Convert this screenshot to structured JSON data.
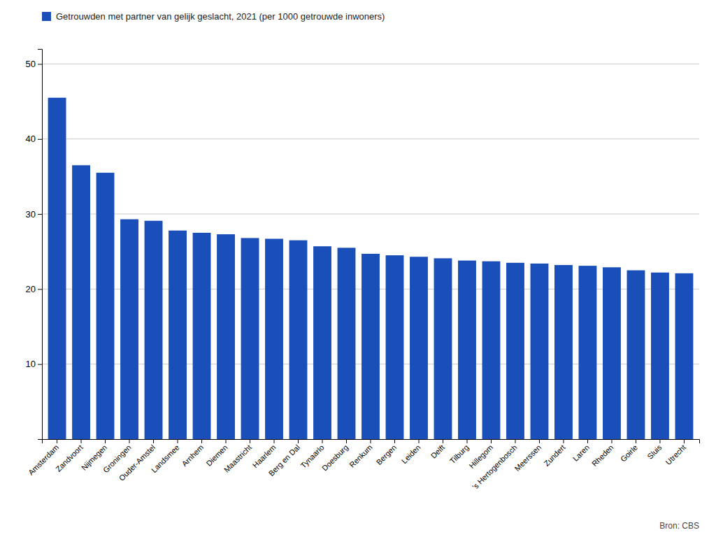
{
  "chart_data": {
    "type": "bar",
    "categories": [
      "Amsterdam",
      "Zandvoort",
      "Nijmegen",
      "Groningen",
      "Ouder-Amstel",
      "Landsmee",
      "Arnhem",
      "Diemen",
      "Maastricht",
      "Haarlem",
      "Berg en Dal",
      "Tynaarlo",
      "Doesburg",
      "Renkum",
      "Bergen",
      "Leiden",
      "Delft",
      "Tilburg",
      "Hillegom",
      "'s Hertogenbosch",
      "Meerssen",
      "Zundert",
      "Laren",
      "Rheden",
      "Goirle",
      "Sluis",
      "Utrecht"
    ],
    "series": [
      {
        "name": "Getrouwden met partner van gelijk geslacht, 2021 (per 1000 getrouwde inwoners)",
        "color": "#1a4fba",
        "values": [
          45.5,
          36.5,
          35.5,
          29.3,
          29.1,
          27.8,
          27.5,
          27.3,
          26.8,
          26.7,
          26.5,
          25.7,
          25.5,
          24.7,
          24.5,
          24.3,
          24.1,
          23.8,
          23.7,
          23.5,
          23.4,
          23.2,
          23.1,
          22.9,
          22.5,
          22.2,
          22.1
        ]
      }
    ],
    "ylim": [
      0,
      52
    ],
    "yticks": [
      10,
      20,
      30,
      40,
      50
    ],
    "grid": true,
    "legend": "upper left",
    "annotations": [
      "Bron: CBS"
    ]
  }
}
